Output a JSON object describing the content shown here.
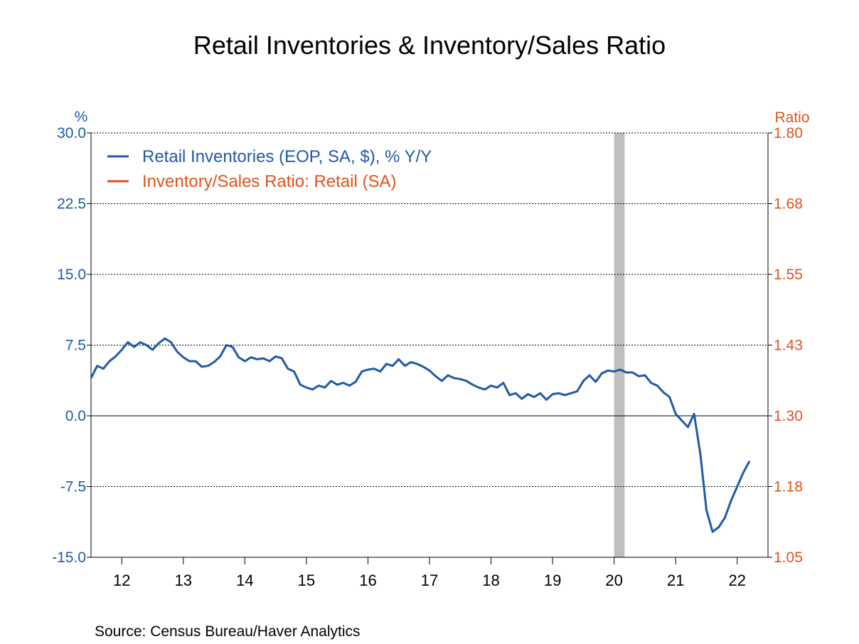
{
  "chart_data": {
    "type": "line",
    "title": "Retail Inventories & Inventory/Sales Ratio",
    "source": "Source:  Census Bureau/Haver Analytics",
    "left_axis": {
      "label": "%",
      "ylim": [
        -15.0,
        30.0
      ],
      "ticks": [
        "30.0",
        "22.5",
        "15.0",
        "7.5",
        "0.0",
        "-7.5",
        "-15.0"
      ],
      "tick_values": [
        30.0,
        22.5,
        15.0,
        7.5,
        0.0,
        -7.5,
        -15.0
      ]
    },
    "right_axis": {
      "label": "Ratio",
      "ylim": [
        1.05,
        1.8
      ],
      "ticks": [
        "1.80",
        "1.68",
        "1.55",
        "1.43",
        "1.30",
        "1.18",
        "1.05"
      ],
      "tick_values": [
        1.8,
        1.675,
        1.55,
        1.425,
        1.3,
        1.175,
        1.05
      ]
    },
    "x_axis": {
      "range": [
        2011.5,
        2022.5
      ],
      "labels": [
        "12",
        "13",
        "14",
        "15",
        "16",
        "17",
        "18",
        "19",
        "20",
        "21",
        "22"
      ],
      "label_positions": [
        2012,
        2013,
        2014,
        2015,
        2016,
        2017,
        2018,
        2019,
        2020,
        2021,
        2022
      ]
    },
    "recession_band": {
      "start": 2020.0,
      "end": 2020.17,
      "color": "#bfbfbf"
    },
    "grid": true,
    "legend_position": "top-left",
    "series": [
      {
        "name": "Retail Inventories (EOP, SA, $), % Y/Y",
        "axis": "left",
        "color": "#1f5aa8",
        "points": [
          [
            2011.5,
            4.0
          ],
          [
            2011.6,
            5.3
          ],
          [
            2011.7,
            5.0
          ],
          [
            2011.8,
            5.8
          ],
          [
            2011.9,
            6.3
          ],
          [
            2012.0,
            7.0
          ],
          [
            2012.1,
            7.8
          ],
          [
            2012.2,
            7.3
          ],
          [
            2012.3,
            7.8
          ],
          [
            2012.4,
            7.5
          ],
          [
            2012.5,
            7.0
          ],
          [
            2012.6,
            7.7
          ],
          [
            2012.7,
            8.2
          ],
          [
            2012.8,
            7.8
          ],
          [
            2012.9,
            6.8
          ],
          [
            2013.0,
            6.2
          ],
          [
            2013.1,
            5.8
          ],
          [
            2013.2,
            5.8
          ],
          [
            2013.3,
            5.2
          ],
          [
            2013.4,
            5.3
          ],
          [
            2013.5,
            5.7
          ],
          [
            2013.6,
            6.3
          ],
          [
            2013.7,
            7.5
          ],
          [
            2013.8,
            7.3
          ],
          [
            2013.9,
            6.2
          ],
          [
            2014.0,
            5.8
          ],
          [
            2014.1,
            6.2
          ],
          [
            2014.2,
            6.0
          ],
          [
            2014.3,
            6.1
          ],
          [
            2014.4,
            5.8
          ],
          [
            2014.5,
            6.3
          ],
          [
            2014.6,
            6.1
          ],
          [
            2014.7,
            5.0
          ],
          [
            2014.8,
            4.7
          ],
          [
            2014.9,
            3.3
          ],
          [
            2015.0,
            3.0
          ],
          [
            2015.1,
            2.8
          ],
          [
            2015.2,
            3.2
          ],
          [
            2015.3,
            3.0
          ],
          [
            2015.4,
            3.7
          ],
          [
            2015.5,
            3.3
          ],
          [
            2015.6,
            3.5
          ],
          [
            2015.7,
            3.2
          ],
          [
            2015.8,
            3.6
          ],
          [
            2015.9,
            4.7
          ],
          [
            2016.0,
            4.9
          ],
          [
            2016.1,
            5.0
          ],
          [
            2016.2,
            4.7
          ],
          [
            2016.3,
            5.5
          ],
          [
            2016.4,
            5.3
          ],
          [
            2016.5,
            6.0
          ],
          [
            2016.6,
            5.3
          ],
          [
            2016.7,
            5.7
          ],
          [
            2016.8,
            5.5
          ],
          [
            2016.9,
            5.2
          ],
          [
            2017.0,
            4.8
          ],
          [
            2017.1,
            4.2
          ],
          [
            2017.2,
            3.7
          ],
          [
            2017.3,
            4.3
          ],
          [
            2017.4,
            4.0
          ],
          [
            2017.5,
            3.9
          ],
          [
            2017.6,
            3.7
          ],
          [
            2017.7,
            3.3
          ],
          [
            2017.8,
            3.0
          ],
          [
            2017.9,
            2.8
          ],
          [
            2018.0,
            3.2
          ],
          [
            2018.1,
            3.0
          ],
          [
            2018.2,
            3.5
          ],
          [
            2018.3,
            2.2
          ],
          [
            2018.4,
            2.4
          ],
          [
            2018.5,
            1.8
          ],
          [
            2018.6,
            2.3
          ],
          [
            2018.7,
            2.0
          ],
          [
            2018.8,
            2.4
          ],
          [
            2018.9,
            1.7
          ],
          [
            2019.0,
            2.3
          ],
          [
            2019.1,
            2.4
          ],
          [
            2019.2,
            2.2
          ],
          [
            2019.3,
            2.4
          ],
          [
            2019.4,
            2.6
          ],
          [
            2019.5,
            3.7
          ],
          [
            2019.6,
            4.3
          ],
          [
            2019.7,
            3.6
          ],
          [
            2019.8,
            4.5
          ],
          [
            2019.9,
            4.8
          ],
          [
            2020.0,
            4.7
          ],
          [
            2020.1,
            4.9
          ],
          [
            2020.2,
            4.6
          ],
          [
            2020.3,
            4.6
          ],
          [
            2020.4,
            4.2
          ],
          [
            2020.5,
            4.3
          ],
          [
            2020.6,
            3.5
          ],
          [
            2020.7,
            3.2
          ],
          [
            2020.8,
            2.5
          ],
          [
            2020.9,
            2.0
          ],
          [
            2021.0,
            0.2
          ],
          [
            2021.1,
            -0.5
          ],
          [
            2021.2,
            -1.2
          ],
          [
            2021.3,
            0.2
          ],
          [
            2021.4,
            -4.0
          ],
          [
            2021.5,
            -10.0
          ],
          [
            2021.6,
            -12.3
          ],
          [
            2021.7,
            -11.8
          ],
          [
            2021.8,
            -10.8
          ],
          [
            2021.9,
            -9.0
          ],
          [
            2022.0,
            -7.5
          ],
          [
            2022.1,
            -6.0
          ],
          [
            2022.2,
            -4.8
          ]
        ]
      },
      {
        "name": "Inventory/Sales Ratio: Retail (SA)",
        "axis": "right",
        "color": "#e0531b",
        "points": []
      }
    ]
  }
}
